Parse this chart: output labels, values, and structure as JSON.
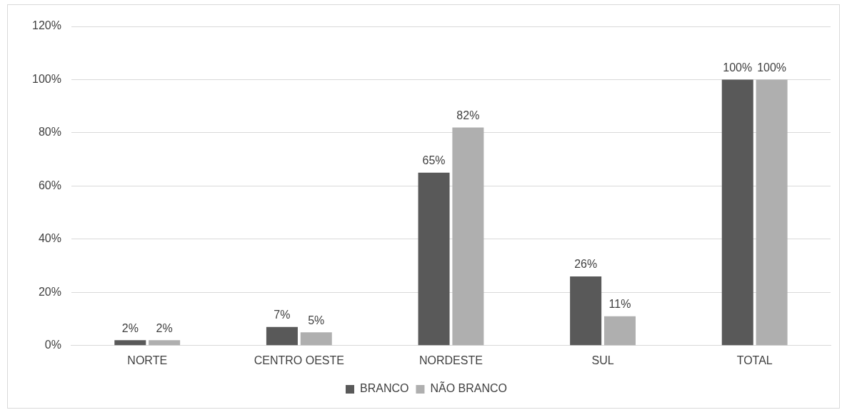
{
  "chart_data": {
    "type": "bar",
    "categories": [
      "NORTE",
      "CENTRO OESTE",
      "NORDESTE",
      "SUL",
      "TOTAL"
    ],
    "series": [
      {
        "name": "BRANCO",
        "color": "#595959",
        "values": [
          2,
          7,
          65,
          26,
          100
        ],
        "value_labels": [
          "2%",
          "7%",
          "65%",
          "26%",
          "100%"
        ]
      },
      {
        "name": "NÃO BRANCO",
        "color": "#afafaf",
        "values": [
          2,
          5,
          82,
          11,
          100
        ],
        "value_labels": [
          "2%",
          "5%",
          "82%",
          "11%",
          "100%"
        ]
      }
    ],
    "ylim": [
      0,
      120
    ],
    "yticks": [
      {
        "value": 0,
        "label": "0%"
      },
      {
        "value": 20,
        "label": "20%"
      },
      {
        "value": 40,
        "label": "40%"
      },
      {
        "value": 60,
        "label": "60%"
      },
      {
        "value": 80,
        "label": "80%"
      },
      {
        "value": 100,
        "label": "100%"
      },
      {
        "value": 120,
        "label": "120%"
      }
    ],
    "grid": "y",
    "legend": "bottom"
  }
}
